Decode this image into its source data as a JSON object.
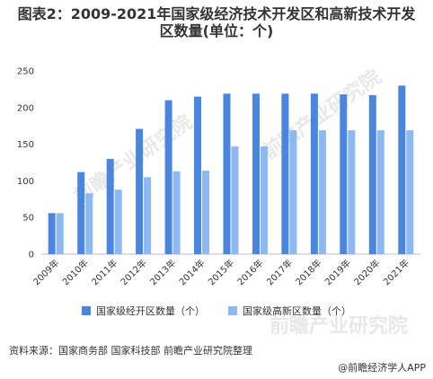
{
  "title_line1": "图表2：2009-2021年国家级经济技术开发区和高新技术开发",
  "title_line2": "区数量(单位：个)",
  "source": "资料来源：国家商务部 国家科技部 前瞻产业研究院整理",
  "brand": "@前瞻经济学人APP",
  "brand_icon": "at-icon",
  "watermarks": [
    "前瞻产业研究院",
    "前瞻产业研究院",
    "前瞻产业研究院"
  ],
  "colors": {
    "dark": "#4a86e0",
    "light": "#8db8f2"
  },
  "chart_data": {
    "type": "bar",
    "categories": [
      "2009年",
      "2010年",
      "2011年",
      "2012年",
      "2013年",
      "2014年",
      "2015年",
      "2016年",
      "2017年",
      "2018年",
      "2019年",
      "2020年",
      "2021年"
    ],
    "series": [
      {
        "name": "国家级经开区数量（个）",
        "values": [
          56,
          112,
          130,
          171,
          210,
          215,
          219,
          219,
          219,
          219,
          218,
          217,
          230
        ]
      },
      {
        "name": "国家级高新区数量（个）",
        "values": [
          56,
          83,
          88,
          105,
          113,
          114,
          147,
          147,
          169,
          169,
          169,
          169,
          169
        ]
      }
    ],
    "ylim": [
      0,
      250
    ],
    "yticks": [
      0,
      50,
      100,
      150,
      200,
      250
    ],
    "legend_position": "bottom"
  }
}
